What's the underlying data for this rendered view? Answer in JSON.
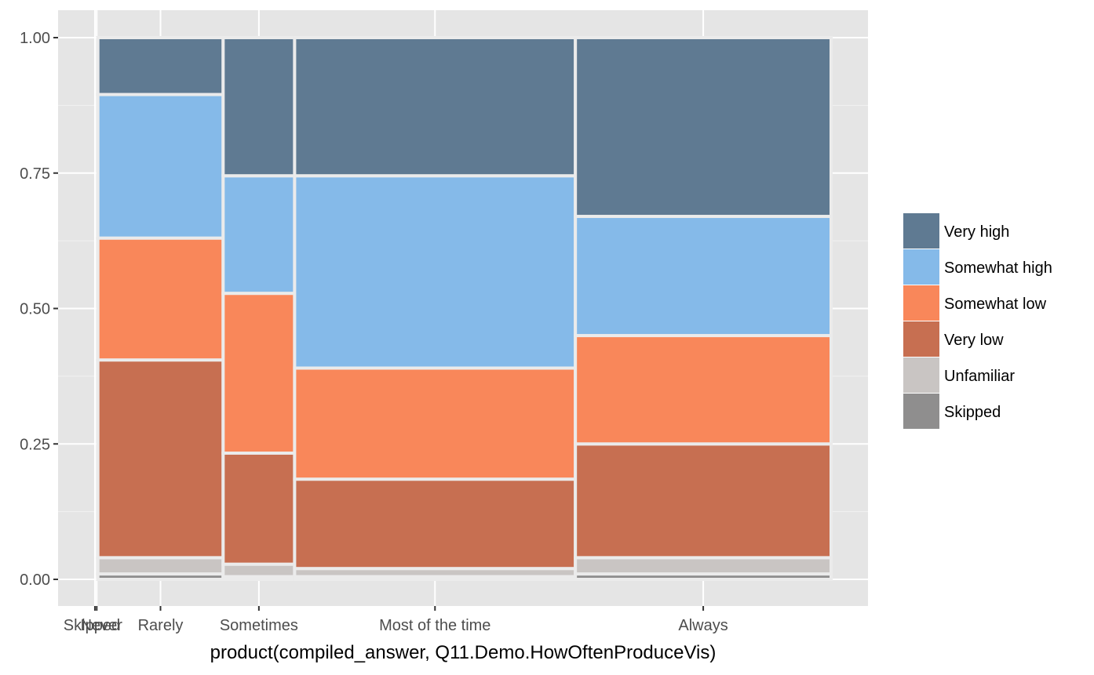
{
  "chart_data": {
    "type": "mosaic",
    "xlabel": "product(compiled_answer, Q11.Demo.HowOftenProduceVis)",
    "ylabel": "",
    "ylim": [
      0,
      1
    ],
    "y_ticks": [
      "0.00",
      "0.25",
      "0.50",
      "0.75",
      "1.00"
    ],
    "grid": true,
    "legend_position": "right",
    "legend": [
      {
        "name": "Very high",
        "color": "#5F7A92"
      },
      {
        "name": "Somewhat high",
        "color": "#85BAE9"
      },
      {
        "name": "Somewhat low",
        "color": "#F9875A"
      },
      {
        "name": "Very low",
        "color": "#C76F51"
      },
      {
        "name": "Unfamiliar",
        "color": "#C9C5C3"
      },
      {
        "name": "Skipped",
        "color": "#8F8E8E"
      }
    ],
    "categories": [
      "Skipped",
      "Never",
      "Rarely",
      "Sometimes",
      "Most of the time",
      "Always"
    ],
    "column_width_fraction": [
      0.002,
      0.003,
      0.17,
      0.097,
      0.381,
      0.347
    ],
    "stacks": [
      {
        "category": "Skipped",
        "segments": []
      },
      {
        "category": "Never",
        "segments": []
      },
      {
        "category": "Rarely",
        "segments": [
          {
            "name": "Skipped",
            "from": 0.0,
            "to": 0.01
          },
          {
            "name": "Unfamiliar",
            "from": 0.01,
            "to": 0.04
          },
          {
            "name": "Very low",
            "from": 0.04,
            "to": 0.405
          },
          {
            "name": "Somewhat low",
            "from": 0.405,
            "to": 0.63
          },
          {
            "name": "Somewhat high",
            "from": 0.63,
            "to": 0.895
          },
          {
            "name": "Very high",
            "from": 0.895,
            "to": 1.0
          }
        ]
      },
      {
        "category": "Sometimes",
        "segments": [
          {
            "name": "Skipped",
            "from": 0.0,
            "to": 0.005
          },
          {
            "name": "Unfamiliar",
            "from": 0.005,
            "to": 0.028
          },
          {
            "name": "Very low",
            "from": 0.028,
            "to": 0.233
          },
          {
            "name": "Somewhat low",
            "from": 0.233,
            "to": 0.528
          },
          {
            "name": "Somewhat high",
            "from": 0.528,
            "to": 0.745
          },
          {
            "name": "Very high",
            "from": 0.745,
            "to": 1.0
          }
        ]
      },
      {
        "category": "Most of the time",
        "segments": [
          {
            "name": "Skipped",
            "from": 0.0,
            "to": 0.005
          },
          {
            "name": "Unfamiliar",
            "from": 0.005,
            "to": 0.02
          },
          {
            "name": "Very low",
            "from": 0.02,
            "to": 0.185
          },
          {
            "name": "Somewhat low",
            "from": 0.185,
            "to": 0.39
          },
          {
            "name": "Somewhat high",
            "from": 0.39,
            "to": 0.745
          },
          {
            "name": "Very high",
            "from": 0.745,
            "to": 1.0
          }
        ]
      },
      {
        "category": "Always",
        "segments": [
          {
            "name": "Skipped",
            "from": 0.0,
            "to": 0.01
          },
          {
            "name": "Unfamiliar",
            "from": 0.01,
            "to": 0.04
          },
          {
            "name": "Very low",
            "from": 0.04,
            "to": 0.25
          },
          {
            "name": "Somewhat low",
            "from": 0.25,
            "to": 0.45
          },
          {
            "name": "Somewhat high",
            "from": 0.45,
            "to": 0.67
          },
          {
            "name": "Very high",
            "from": 0.67,
            "to": 1.0
          }
        ]
      }
    ],
    "colors": {
      "panel_background": "#E5E5E5",
      "grid_line": "#FFFFFF",
      "segment_outline": "#EBEBEB"
    }
  }
}
